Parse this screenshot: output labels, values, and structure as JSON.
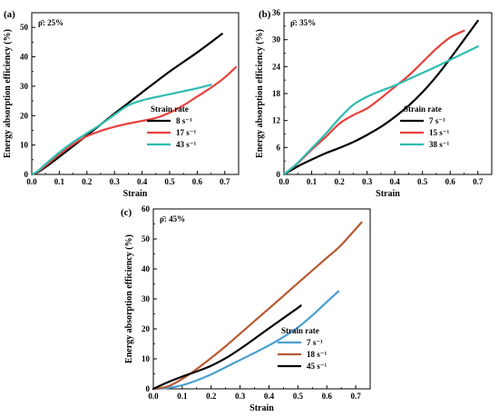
{
  "chart_data": [
    {
      "type": "line",
      "panel_label": "(a)",
      "annotation": "ρ̄: 25%",
      "xlabel": "Strain",
      "ylabel": "Energy absorption efficiency (%)",
      "xlim": [
        0,
        0.75
      ],
      "ylim": [
        0,
        55
      ],
      "xticks": [
        "0.0",
        "0.1",
        "0.2",
        "0.3",
        "0.4",
        "0.5",
        "0.6",
        "0.7"
      ],
      "yticks": [
        "0",
        "10",
        "20",
        "30",
        "40",
        "50"
      ],
      "legend_title": "Strain rate",
      "legend_position": "bottom-right",
      "series": [
        {
          "name": "8 s⁻¹",
          "color": "#000000",
          "x": [
            0,
            0.02,
            0.05,
            0.1,
            0.2,
            0.3,
            0.4,
            0.5,
            0.6,
            0.69
          ],
          "y": [
            0,
            0.6,
            2.5,
            6,
            13.3,
            20.7,
            27.9,
            35,
            41.5,
            47.8
          ]
        },
        {
          "name": "17 s⁻¹",
          "color": "#e8413c",
          "x": [
            0,
            0.02,
            0.05,
            0.1,
            0.15,
            0.2,
            0.25,
            0.3,
            0.35,
            0.4,
            0.45,
            0.5,
            0.55,
            0.6,
            0.65,
            0.7,
            0.74
          ],
          "y": [
            0,
            0.8,
            3,
            6.8,
            10.2,
            13,
            14.8,
            16.2,
            17.3,
            18.2,
            19.2,
            21,
            23.5,
            26.5,
            29.5,
            33,
            36.5
          ]
        },
        {
          "name": "43 s⁻¹",
          "color": "#2fbcb0",
          "x": [
            0,
            0.02,
            0.05,
            0.1,
            0.15,
            0.2,
            0.25,
            0.3,
            0.35,
            0.4,
            0.45,
            0.5,
            0.55,
            0.6,
            0.65
          ],
          "y": [
            0,
            1,
            3.5,
            7.5,
            11,
            14,
            17,
            20.3,
            23.5,
            25.2,
            26.3,
            27.3,
            28.3,
            29.3,
            30.5
          ]
        }
      ]
    },
    {
      "type": "line",
      "panel_label": "(b)",
      "annotation": "ρ̄: 35%",
      "xlabel": "Strain",
      "ylabel": "Energy absorption efficiency (%)",
      "xlim": [
        0,
        0.75
      ],
      "ylim": [
        0,
        36
      ],
      "xticks": [
        "0.0",
        "0.1",
        "0.2",
        "0.3",
        "0.4",
        "0.5",
        "0.6",
        "0.7"
      ],
      "yticks": [
        "0",
        "6",
        "12",
        "18",
        "24",
        "30",
        "36"
      ],
      "legend_title": "Strain rate",
      "legend_position": "bottom-right",
      "series": [
        {
          "name": "7 s⁻¹",
          "color": "#000000",
          "x": [
            0,
            0.05,
            0.1,
            0.15,
            0.2,
            0.25,
            0.3,
            0.35,
            0.4,
            0.45,
            0.5,
            0.55,
            0.6,
            0.65,
            0.7
          ],
          "y": [
            0,
            1.8,
            3.3,
            4.7,
            5.9,
            7.2,
            8.8,
            10.6,
            12.8,
            15.3,
            18.3,
            21.8,
            25.8,
            30,
            34.2
          ]
        },
        {
          "name": "15 s⁻¹",
          "color": "#e8413c",
          "x": [
            0,
            0.05,
            0.1,
            0.15,
            0.2,
            0.25,
            0.3,
            0.35,
            0.4,
            0.45,
            0.5,
            0.55,
            0.6,
            0.65
          ],
          "y": [
            0,
            2.5,
            5.5,
            8.3,
            11.3,
            13.2,
            14.7,
            17,
            19.5,
            22,
            25,
            28,
            30.5,
            32
          ]
        },
        {
          "name": "38 s⁻¹",
          "color": "#2fbcb0",
          "x": [
            0,
            0.05,
            0.1,
            0.15,
            0.2,
            0.25,
            0.3,
            0.35,
            0.4,
            0.45,
            0.5,
            0.55,
            0.6,
            0.65,
            0.7
          ],
          "y": [
            0,
            2.6,
            5.8,
            9,
            12.5,
            15.5,
            17.3,
            18.6,
            19.8,
            21.2,
            22.6,
            24,
            25.5,
            27,
            28.5
          ]
        }
      ]
    },
    {
      "type": "line",
      "panel_label": "(c)",
      "annotation": "ρ̄: 45%",
      "xlabel": "Strain",
      "ylabel": "Energy absorption efficiency (%)",
      "xlim": [
        0,
        0.75
      ],
      "ylim": [
        0,
        60
      ],
      "xticks": [
        "0.0",
        "0.1",
        "0.2",
        "0.3",
        "0.4",
        "0.5",
        "0.6",
        "0.7"
      ],
      "yticks": [
        "0",
        "10",
        "20",
        "30",
        "40",
        "50",
        "60"
      ],
      "legend_title": "Strain rate",
      "legend_position": "bottom-right",
      "series": [
        {
          "name": "7 s⁻¹",
          "color": "#4a9fd1",
          "x": [
            0,
            0.05,
            0.1,
            0.15,
            0.2,
            0.25,
            0.3,
            0.35,
            0.4,
            0.45,
            0.5,
            0.55,
            0.6,
            0.64
          ],
          "y": [
            0,
            0.3,
            1.2,
            2.8,
            4.8,
            7.2,
            9.6,
            12,
            14.5,
            17.3,
            20.5,
            24.5,
            29,
            32.5
          ]
        },
        {
          "name": "18 s⁻¹",
          "color": "#b75a32",
          "x": [
            0,
            0.05,
            0.1,
            0.15,
            0.2,
            0.25,
            0.3,
            0.35,
            0.4,
            0.45,
            0.5,
            0.55,
            0.6,
            0.65,
            0.72
          ],
          "y": [
            0,
            0.8,
            3.3,
            6.6,
            10.3,
            14.2,
            18.4,
            22.6,
            26.8,
            31,
            35.3,
            39.5,
            43.7,
            48,
            55.5
          ]
        },
        {
          "name": "45 s⁻¹",
          "color": "#000000",
          "x": [
            0,
            0.05,
            0.1,
            0.15,
            0.2,
            0.25,
            0.3,
            0.35,
            0.4,
            0.45,
            0.5,
            0.51
          ],
          "y": [
            0,
            2.2,
            4.1,
            5.8,
            7.7,
            10.2,
            13.3,
            16.7,
            20.2,
            23.6,
            27,
            27.8
          ]
        }
      ]
    }
  ]
}
